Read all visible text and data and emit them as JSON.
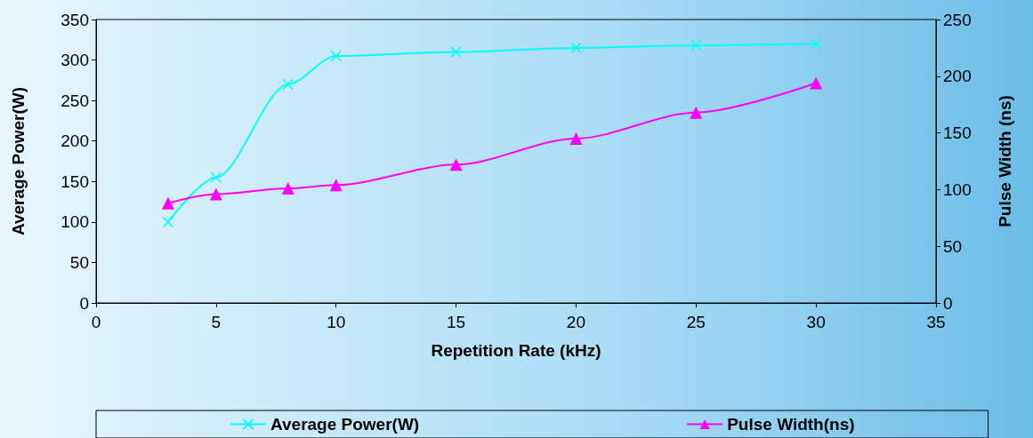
{
  "chart_data": {
    "type": "line",
    "xlabel": "Repetition Rate (kHz)",
    "ylabel": "Average Power(W)",
    "y2label": "Pulse Width (ns)",
    "x": [
      3,
      5,
      8,
      10,
      15,
      20,
      25,
      30
    ],
    "series": [
      {
        "name": "Average Power(W)",
        "color": "#00ffff",
        "marker": "cross",
        "values": [
          100,
          155,
          270,
          305,
          310,
          315,
          318,
          320
        ]
      },
      {
        "name": "Pulse Width(ns)",
        "color": "#ff00ff",
        "marker": "triangle",
        "axis": "y2",
        "values": [
          88,
          96,
          101,
          104,
          122,
          145,
          168,
          194
        ]
      }
    ],
    "xlim": [
      0,
      35
    ],
    "xticks": [
      0,
      5,
      10,
      15,
      20,
      25,
      30,
      35
    ],
    "ylim": [
      0,
      350
    ],
    "yticks": [
      0,
      50,
      100,
      150,
      200,
      250,
      300,
      350
    ],
    "y2lim": [
      0,
      250
    ],
    "y2ticks": [
      0,
      50,
      100,
      150,
      200,
      250
    ],
    "grid": false,
    "legend": "bottom",
    "line_style": "solid"
  }
}
